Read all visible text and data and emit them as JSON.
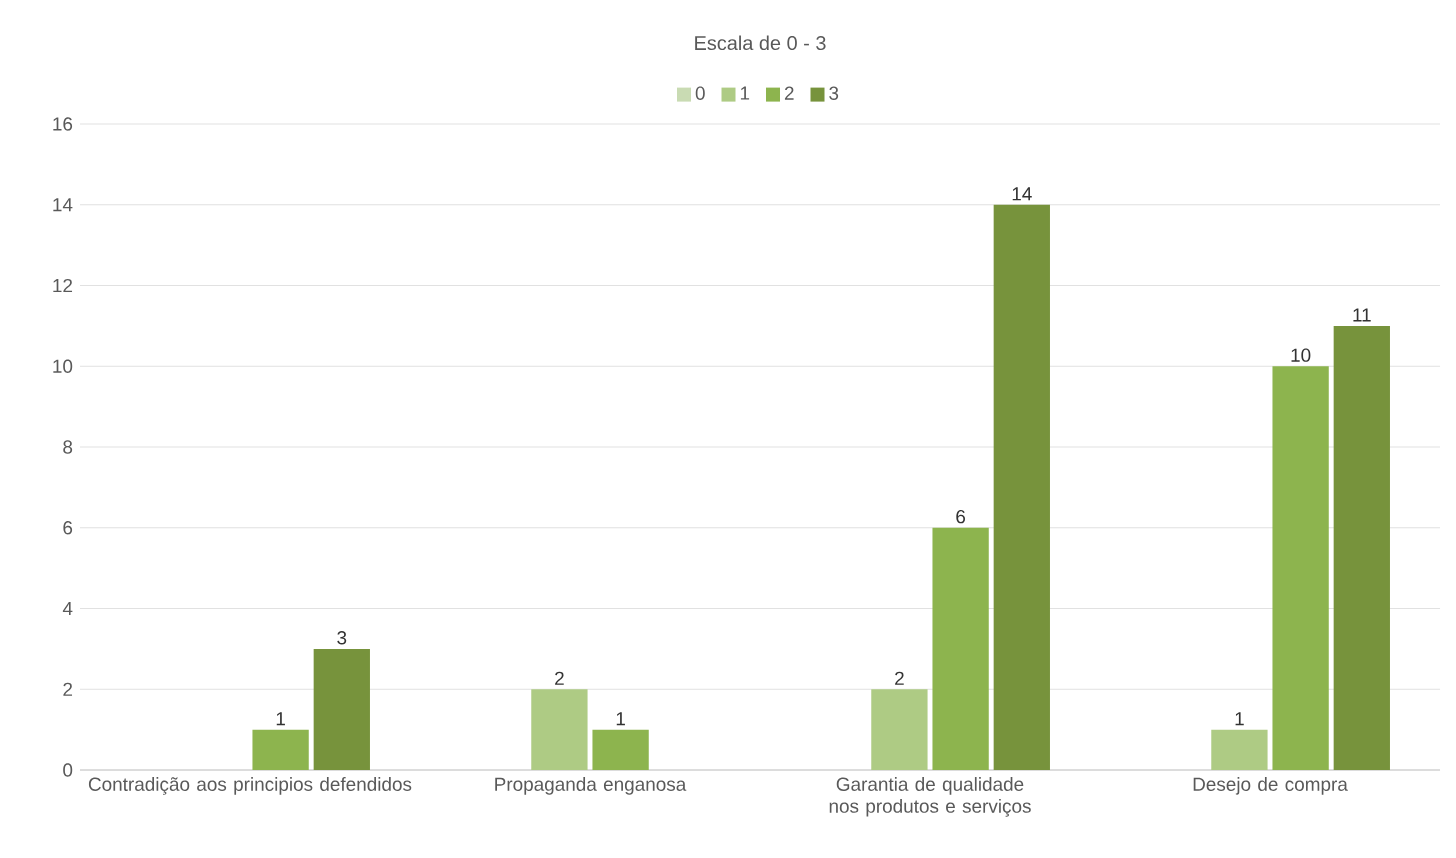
{
  "chart_data": {
    "type": "bar",
    "title": "Escala de 0 - 3",
    "categories": [
      "Contradição  aos principios defendidos",
      "Propaganda enganosa",
      "Garantia de qualidade nos produtos e serviços",
      "Desejo de compra"
    ],
    "series": [
      {
        "name": "0",
        "color": "#c9dbb3",
        "values": [
          null,
          null,
          null,
          null
        ]
      },
      {
        "name": "1",
        "color": "#aecb84",
        "values": [
          null,
          2,
          2,
          1
        ]
      },
      {
        "name": "2",
        "color": "#8db44e",
        "values": [
          1,
          1,
          6,
          10
        ]
      },
      {
        "name": "3",
        "color": "#77933c",
        "values": [
          3,
          null,
          14,
          11
        ]
      }
    ],
    "ylim": [
      0,
      16
    ],
    "yticks": [
      0,
      2,
      4,
      6,
      8,
      10,
      12,
      14,
      16
    ],
    "grid": "y",
    "legend": "top",
    "data_labels": true
  }
}
